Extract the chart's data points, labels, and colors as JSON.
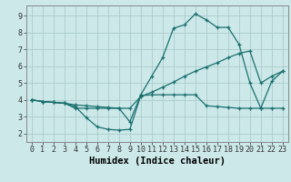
{
  "xlabel": "Humidex (Indice chaleur)",
  "xlim": [
    -0.5,
    23.5
  ],
  "ylim": [
    1.5,
    9.6
  ],
  "xticks": [
    0,
    1,
    2,
    3,
    4,
    5,
    6,
    7,
    8,
    9,
    10,
    11,
    12,
    13,
    14,
    15,
    16,
    17,
    18,
    19,
    20,
    21,
    22,
    23
  ],
  "yticks": [
    2,
    3,
    4,
    5,
    6,
    7,
    8,
    9
  ],
  "bg_color": "#cce8e8",
  "plot_bg_color": "#cce8e8",
  "grid_color": "#aacccc",
  "line_color": "#1a7070",
  "line1_x": [
    0,
    1,
    2,
    3,
    4,
    5,
    6,
    7,
    8,
    9,
    10,
    11,
    12,
    13,
    14,
    15,
    16,
    17,
    18,
    19,
    20,
    21,
    22,
    23
  ],
  "line1_y": [
    4.0,
    3.9,
    3.85,
    3.8,
    3.6,
    2.95,
    2.4,
    2.25,
    2.2,
    2.25,
    4.25,
    4.3,
    4.3,
    4.3,
    4.3,
    4.3,
    3.65,
    3.6,
    3.55,
    3.5,
    3.5,
    3.5,
    3.5,
    3.5
  ],
  "line2_x": [
    0,
    1,
    2,
    3,
    4,
    5,
    6,
    7,
    8,
    9,
    10,
    11,
    12,
    13,
    14,
    15,
    16,
    17,
    18,
    19,
    20,
    21,
    22,
    23
  ],
  "line2_y": [
    4.0,
    3.9,
    3.85,
    3.8,
    3.5,
    3.5,
    3.5,
    3.5,
    3.5,
    2.7,
    4.3,
    5.4,
    6.5,
    8.25,
    8.45,
    9.1,
    8.75,
    8.3,
    8.3,
    7.3,
    5.0,
    3.5,
    5.1,
    5.7
  ],
  "line3_x": [
    0,
    1,
    2,
    3,
    4,
    5,
    6,
    7,
    8,
    9,
    10,
    11,
    12,
    13,
    14,
    15,
    16,
    17,
    18,
    19,
    20,
    21,
    22,
    23
  ],
  "line3_y": [
    4.0,
    3.9,
    3.85,
    3.8,
    3.7,
    3.65,
    3.6,
    3.55,
    3.5,
    3.5,
    4.2,
    4.45,
    4.75,
    5.05,
    5.4,
    5.7,
    5.95,
    6.2,
    6.5,
    6.75,
    6.9,
    5.0,
    5.4,
    5.7
  ],
  "tick_fontsize": 6.0,
  "xlabel_fontsize": 7.5
}
